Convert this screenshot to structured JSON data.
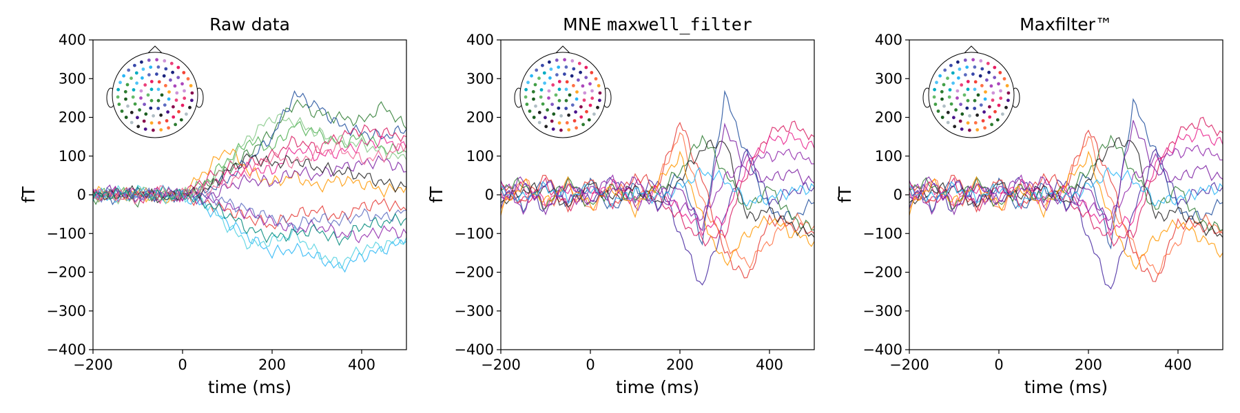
{
  "figure": {
    "background": "#ffffff"
  },
  "chart_data": [
    {
      "type": "line",
      "title": "Raw data",
      "title_parts": [
        {
          "text": "Raw data",
          "mono": false
        }
      ],
      "xlabel": "time (ms)",
      "ylabel": "fT",
      "xlim": [
        -200,
        500
      ],
      "ylim": [
        -400,
        400
      ],
      "xticks": [
        -200,
        0,
        200,
        400
      ],
      "xtick_labels": [
        "−200",
        "0",
        "200",
        "400"
      ],
      "yticks": [
        -400,
        -300,
        -200,
        -100,
        0,
        100,
        200,
        300,
        400
      ],
      "ytick_labels": [
        "−400",
        "−300",
        "−200",
        "−100",
        "0",
        "100",
        "200",
        "300",
        "400"
      ],
      "grid": false,
      "legend": "sensor-position head inset, top-left",
      "series": [
        {
          "color": "#2e7d32",
          "values": [
            -10,
            5,
            -15,
            10,
            0,
            20,
            60,
            110,
            160,
            240,
            210,
            200,
            190,
            230,
            170
          ]
        },
        {
          "color": "#1f4e9c",
          "values": [
            5,
            -10,
            10,
            -5,
            0,
            10,
            40,
            90,
            150,
            260,
            230,
            180,
            160,
            150,
            170
          ]
        },
        {
          "color": "#4caf50",
          "values": [
            -5,
            10,
            -5,
            5,
            0,
            30,
            90,
            140,
            120,
            180,
            160,
            130,
            150,
            120,
            110
          ]
        },
        {
          "color": "#ff9800",
          "values": [
            10,
            -5,
            5,
            -10,
            0,
            60,
            120,
            60,
            30,
            50,
            20,
            40,
            30,
            10,
            20
          ]
        },
        {
          "color": "#d81b60",
          "values": [
            -5,
            5,
            -10,
            10,
            0,
            40,
            70,
            80,
            100,
            140,
            120,
            150,
            170,
            160,
            150
          ]
        },
        {
          "color": "#e91e8c",
          "values": [
            0,
            -5,
            5,
            -5,
            0,
            20,
            50,
            70,
            60,
            120,
            100,
            110,
            130,
            140,
            120
          ]
        },
        {
          "color": "#7b1fa2",
          "values": [
            5,
            10,
            -5,
            0,
            0,
            -10,
            20,
            40,
            30,
            60,
            50,
            70,
            80,
            90,
            60
          ]
        },
        {
          "color": "#e53935",
          "values": [
            -10,
            0,
            5,
            -5,
            0,
            -20,
            -40,
            -60,
            -80,
            -50,
            -40,
            -60,
            -30,
            -20,
            -40
          ]
        },
        {
          "color": "#29b6f6",
          "values": [
            5,
            -10,
            0,
            10,
            0,
            -30,
            -70,
            -110,
            -150,
            -140,
            -160,
            -190,
            -160,
            -140,
            -120
          ]
        },
        {
          "color": "#4dd0e1",
          "values": [
            -5,
            5,
            10,
            -10,
            0,
            -20,
            -80,
            -130,
            -120,
            -100,
            -150,
            -180,
            -140,
            -130,
            -110
          ]
        },
        {
          "color": "#8e24aa",
          "values": [
            0,
            5,
            -5,
            5,
            0,
            -10,
            -30,
            -50,
            -70,
            -90,
            -80,
            -100,
            -110,
            -90,
            -100
          ]
        },
        {
          "color": "#212121",
          "values": [
            5,
            -5,
            10,
            -10,
            0,
            10,
            60,
            100,
            80,
            90,
            70,
            60,
            50,
            30,
            20
          ]
        },
        {
          "color": "#5c6bc0",
          "values": [
            -10,
            10,
            -5,
            5,
            0,
            0,
            -20,
            -40,
            -60,
            -80,
            -60,
            -70,
            -50,
            -60,
            -40
          ]
        },
        {
          "color": "#81c784",
          "values": [
            0,
            -10,
            10,
            -5,
            0,
            20,
            80,
            150,
            200,
            190,
            160,
            140,
            130,
            110,
            90
          ]
        },
        {
          "color": "#f06292",
          "values": [
            5,
            0,
            -10,
            10,
            0,
            10,
            30,
            60,
            100,
            80,
            110,
            120,
            90,
            100,
            130
          ]
        },
        {
          "color": "#00897b",
          "values": [
            -5,
            5,
            5,
            -5,
            0,
            -20,
            -50,
            -90,
            -110,
            -100,
            -90,
            -120,
            -80,
            -70,
            -60
          ]
        }
      ],
      "x": [
        -200,
        -150,
        -100,
        -50,
        0,
        50,
        100,
        150,
        200,
        250,
        300,
        350,
        400,
        450,
        500
      ]
    },
    {
      "type": "line",
      "title": "MNE maxwell_filter",
      "title_parts": [
        {
          "text": "MNE ",
          "mono": false
        },
        {
          "text": "maxwell_filter",
          "mono": true
        }
      ],
      "xlabel": "time (ms)",
      "ylabel": "fT",
      "xlim": [
        -200,
        500
      ],
      "ylim": [
        -400,
        400
      ],
      "xticks": [
        -200,
        0,
        200,
        400
      ],
      "xtick_labels": [
        "−200",
        "0",
        "200",
        "400"
      ],
      "yticks": [
        -400,
        -300,
        -200,
        -100,
        0,
        100,
        200,
        300,
        400
      ],
      "ytick_labels": [
        "−400",
        "−300",
        "−200",
        "−100",
        "0",
        "100",
        "200",
        "300",
        "400"
      ],
      "grid": false,
      "legend": "sensor-position head inset, top-left",
      "series": [
        {
          "color": "#1f4e9c",
          "values": [
            20,
            -30,
            40,
            -20,
            30,
            -40,
            20,
            -30,
            60,
            -120,
            260,
            100,
            -40,
            -60,
            -20
          ]
        },
        {
          "color": "#4527a0",
          "values": [
            -20,
            30,
            -40,
            30,
            -20,
            40,
            -10,
            40,
            -100,
            -240,
            -60,
            120,
            -20,
            10,
            20
          ]
        },
        {
          "color": "#e53935",
          "values": [
            30,
            -20,
            50,
            -40,
            40,
            -30,
            50,
            20,
            190,
            40,
            -150,
            -220,
            -60,
            -80,
            -100
          ]
        },
        {
          "color": "#ff7043",
          "values": [
            -30,
            40,
            -30,
            20,
            -40,
            30,
            -20,
            30,
            160,
            -20,
            -120,
            -180,
            -120,
            -60,
            -80
          ]
        },
        {
          "color": "#d81b60",
          "values": [
            10,
            -20,
            30,
            -30,
            20,
            -20,
            30,
            -10,
            -60,
            -120,
            -100,
            60,
            160,
            180,
            150
          ]
        },
        {
          "color": "#e91e8c",
          "values": [
            -10,
            20,
            -20,
            20,
            -10,
            30,
            -20,
            10,
            -40,
            -90,
            -60,
            80,
            140,
            150,
            120
          ]
        },
        {
          "color": "#2e7d32",
          "values": [
            20,
            30,
            -30,
            40,
            -30,
            20,
            -10,
            10,
            60,
            150,
            60,
            -40,
            20,
            -60,
            -90
          ]
        },
        {
          "color": "#212121",
          "values": [
            -20,
            10,
            20,
            -30,
            30,
            -10,
            20,
            -20,
            40,
            120,
            140,
            -60,
            -40,
            -80,
            -110
          ]
        },
        {
          "color": "#8e24aa",
          "values": [
            40,
            -40,
            30,
            -20,
            10,
            40,
            -30,
            20,
            -30,
            -60,
            40,
            90,
            100,
            110,
            80
          ]
        },
        {
          "color": "#ff9800",
          "values": [
            -40,
            30,
            -20,
            30,
            -30,
            20,
            -40,
            30,
            100,
            -60,
            -180,
            -100,
            -60,
            -100,
            -120
          ]
        },
        {
          "color": "#29b6f6",
          "values": [
            10,
            -10,
            20,
            -10,
            20,
            -20,
            10,
            -10,
            20,
            60,
            40,
            -20,
            -10,
            10,
            20
          ]
        },
        {
          "color": "#7b1fa2",
          "values": [
            -10,
            40,
            -40,
            30,
            -20,
            10,
            40,
            -40,
            20,
            -90,
            180,
            60,
            40,
            60,
            30
          ]
        }
      ],
      "x": [
        -200,
        -150,
        -100,
        -50,
        0,
        50,
        100,
        150,
        200,
        250,
        300,
        350,
        400,
        450,
        500
      ]
    },
    {
      "type": "line",
      "title": "Maxfilter™",
      "title_parts": [
        {
          "text": "Maxfilter™",
          "mono": false
        }
      ],
      "xlabel": "time (ms)",
      "ylabel": "fT",
      "xlim": [
        -200,
        500
      ],
      "ylim": [
        -400,
        400
      ],
      "xticks": [
        -200,
        0,
        200,
        400
      ],
      "xtick_labels": [
        "−200",
        "0",
        "200",
        "400"
      ],
      "yticks": [
        -400,
        -300,
        -200,
        -100,
        0,
        100,
        200,
        300,
        400
      ],
      "ytick_labels": [
        "−400",
        "−300",
        "−200",
        "−100",
        "0",
        "100",
        "200",
        "300",
        "400"
      ],
      "grid": false,
      "legend": "sensor-position head inset, top-left",
      "series": [
        {
          "color": "#1f4e9c",
          "values": [
            20,
            -30,
            40,
            -20,
            30,
            -40,
            20,
            -30,
            60,
            -130,
            240,
            110,
            -40,
            -60,
            -20
          ]
        },
        {
          "color": "#4527a0",
          "values": [
            -20,
            30,
            -40,
            30,
            -20,
            40,
            -10,
            40,
            -110,
            -250,
            -50,
            120,
            -20,
            10,
            20
          ]
        },
        {
          "color": "#e53935",
          "values": [
            30,
            -20,
            50,
            -40,
            40,
            -30,
            50,
            20,
            170,
            40,
            -150,
            -230,
            -70,
            -80,
            -100
          ]
        },
        {
          "color": "#ff7043",
          "values": [
            -30,
            40,
            -30,
            20,
            -40,
            30,
            -20,
            30,
            150,
            -20,
            -130,
            -200,
            -120,
            -60,
            -90
          ]
        },
        {
          "color": "#d81b60",
          "values": [
            10,
            -20,
            30,
            -30,
            20,
            -20,
            30,
            -10,
            -60,
            -120,
            -100,
            60,
            160,
            190,
            160
          ]
        },
        {
          "color": "#e91e8c",
          "values": [
            -10,
            20,
            -20,
            20,
            -10,
            30,
            -20,
            10,
            -40,
            -90,
            -60,
            80,
            140,
            160,
            130
          ]
        },
        {
          "color": "#2e7d32",
          "values": [
            20,
            30,
            -30,
            40,
            -30,
            20,
            -10,
            10,
            60,
            150,
            60,
            -40,
            20,
            -70,
            -90
          ]
        },
        {
          "color": "#212121",
          "values": [
            -20,
            10,
            20,
            -30,
            30,
            -10,
            20,
            -20,
            40,
            130,
            140,
            -60,
            -40,
            -80,
            -110
          ]
        },
        {
          "color": "#8e24aa",
          "values": [
            40,
            -40,
            30,
            -20,
            10,
            40,
            -30,
            20,
            -30,
            -60,
            40,
            90,
            110,
            120,
            90
          ]
        },
        {
          "color": "#ff9800",
          "values": [
            -40,
            30,
            -20,
            30,
            -30,
            20,
            -40,
            30,
            100,
            -60,
            -190,
            -110,
            -70,
            -110,
            -150
          ]
        },
        {
          "color": "#29b6f6",
          "values": [
            10,
            -10,
            20,
            -10,
            20,
            -20,
            10,
            -10,
            20,
            60,
            40,
            -20,
            -10,
            10,
            20
          ]
        },
        {
          "color": "#7b1fa2",
          "values": [
            -10,
            40,
            -40,
            30,
            -20,
            10,
            40,
            -40,
            20,
            -90,
            190,
            60,
            40,
            70,
            40
          ]
        }
      ],
      "x": [
        -200,
        -150,
        -100,
        -50,
        0,
        50,
        100,
        150,
        200,
        250,
        300,
        350,
        400,
        450,
        500
      ]
    }
  ],
  "head_inset": {
    "sensor_colors": [
      "#1b5e20",
      "#2e7d32",
      "#43a047",
      "#66bb6a",
      "#00acc1",
      "#4fc3f7",
      "#29b6f6",
      "#5c6bc0",
      "#3949ab",
      "#1a237e",
      "#7e57c2",
      "#ab47bc",
      "#ce93d8",
      "#ec407a",
      "#e91e63",
      "#f44336",
      "#ff7043",
      "#ffa726",
      "#880e4f",
      "#4a148c",
      "#212121",
      "#b0bec5"
    ]
  }
}
